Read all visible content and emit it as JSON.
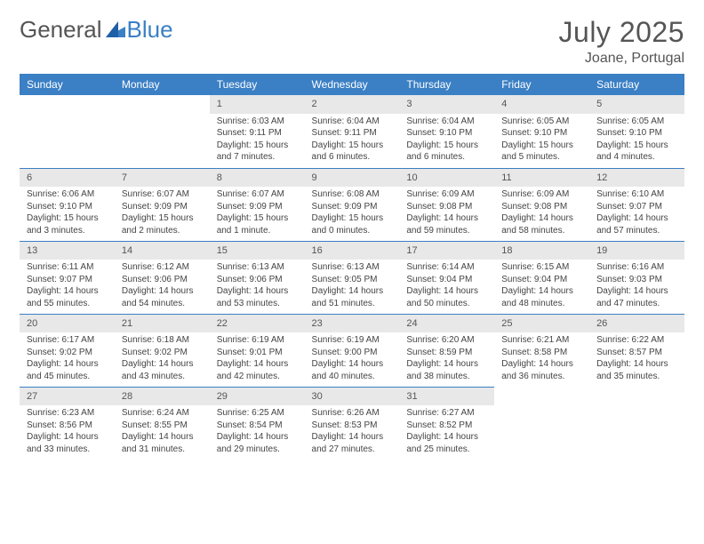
{
  "brand": {
    "part1": "General",
    "part2": "Blue"
  },
  "title": "July 2025",
  "location": "Joane, Portugal",
  "headers": [
    "Sunday",
    "Monday",
    "Tuesday",
    "Wednesday",
    "Thursday",
    "Friday",
    "Saturday"
  ],
  "colors": {
    "accent": "#3b7fc4",
    "dayHeaderBg": "#e8e8e8",
    "text": "#444444"
  },
  "startOffset": 2,
  "days": [
    {
      "n": 1,
      "sr": "6:03 AM",
      "ss": "9:11 PM",
      "dl": "15 hours and 7 minutes."
    },
    {
      "n": 2,
      "sr": "6:04 AM",
      "ss": "9:11 PM",
      "dl": "15 hours and 6 minutes."
    },
    {
      "n": 3,
      "sr": "6:04 AM",
      "ss": "9:10 PM",
      "dl": "15 hours and 6 minutes."
    },
    {
      "n": 4,
      "sr": "6:05 AM",
      "ss": "9:10 PM",
      "dl": "15 hours and 5 minutes."
    },
    {
      "n": 5,
      "sr": "6:05 AM",
      "ss": "9:10 PM",
      "dl": "15 hours and 4 minutes."
    },
    {
      "n": 6,
      "sr": "6:06 AM",
      "ss": "9:10 PM",
      "dl": "15 hours and 3 minutes."
    },
    {
      "n": 7,
      "sr": "6:07 AM",
      "ss": "9:09 PM",
      "dl": "15 hours and 2 minutes."
    },
    {
      "n": 8,
      "sr": "6:07 AM",
      "ss": "9:09 PM",
      "dl": "15 hours and 1 minute."
    },
    {
      "n": 9,
      "sr": "6:08 AM",
      "ss": "9:09 PM",
      "dl": "15 hours and 0 minutes."
    },
    {
      "n": 10,
      "sr": "6:09 AM",
      "ss": "9:08 PM",
      "dl": "14 hours and 59 minutes."
    },
    {
      "n": 11,
      "sr": "6:09 AM",
      "ss": "9:08 PM",
      "dl": "14 hours and 58 minutes."
    },
    {
      "n": 12,
      "sr": "6:10 AM",
      "ss": "9:07 PM",
      "dl": "14 hours and 57 minutes."
    },
    {
      "n": 13,
      "sr": "6:11 AM",
      "ss": "9:07 PM",
      "dl": "14 hours and 55 minutes."
    },
    {
      "n": 14,
      "sr": "6:12 AM",
      "ss": "9:06 PM",
      "dl": "14 hours and 54 minutes."
    },
    {
      "n": 15,
      "sr": "6:13 AM",
      "ss": "9:06 PM",
      "dl": "14 hours and 53 minutes."
    },
    {
      "n": 16,
      "sr": "6:13 AM",
      "ss": "9:05 PM",
      "dl": "14 hours and 51 minutes."
    },
    {
      "n": 17,
      "sr": "6:14 AM",
      "ss": "9:04 PM",
      "dl": "14 hours and 50 minutes."
    },
    {
      "n": 18,
      "sr": "6:15 AM",
      "ss": "9:04 PM",
      "dl": "14 hours and 48 minutes."
    },
    {
      "n": 19,
      "sr": "6:16 AM",
      "ss": "9:03 PM",
      "dl": "14 hours and 47 minutes."
    },
    {
      "n": 20,
      "sr": "6:17 AM",
      "ss": "9:02 PM",
      "dl": "14 hours and 45 minutes."
    },
    {
      "n": 21,
      "sr": "6:18 AM",
      "ss": "9:02 PM",
      "dl": "14 hours and 43 minutes."
    },
    {
      "n": 22,
      "sr": "6:19 AM",
      "ss": "9:01 PM",
      "dl": "14 hours and 42 minutes."
    },
    {
      "n": 23,
      "sr": "6:19 AM",
      "ss": "9:00 PM",
      "dl": "14 hours and 40 minutes."
    },
    {
      "n": 24,
      "sr": "6:20 AM",
      "ss": "8:59 PM",
      "dl": "14 hours and 38 minutes."
    },
    {
      "n": 25,
      "sr": "6:21 AM",
      "ss": "8:58 PM",
      "dl": "14 hours and 36 minutes."
    },
    {
      "n": 26,
      "sr": "6:22 AM",
      "ss": "8:57 PM",
      "dl": "14 hours and 35 minutes."
    },
    {
      "n": 27,
      "sr": "6:23 AM",
      "ss": "8:56 PM",
      "dl": "14 hours and 33 minutes."
    },
    {
      "n": 28,
      "sr": "6:24 AM",
      "ss": "8:55 PM",
      "dl": "14 hours and 31 minutes."
    },
    {
      "n": 29,
      "sr": "6:25 AM",
      "ss": "8:54 PM",
      "dl": "14 hours and 29 minutes."
    },
    {
      "n": 30,
      "sr": "6:26 AM",
      "ss": "8:53 PM",
      "dl": "14 hours and 27 minutes."
    },
    {
      "n": 31,
      "sr": "6:27 AM",
      "ss": "8:52 PM",
      "dl": "14 hours and 25 minutes."
    }
  ],
  "labels": {
    "sunrise": "Sunrise:",
    "sunset": "Sunset:",
    "daylight": "Daylight:"
  }
}
